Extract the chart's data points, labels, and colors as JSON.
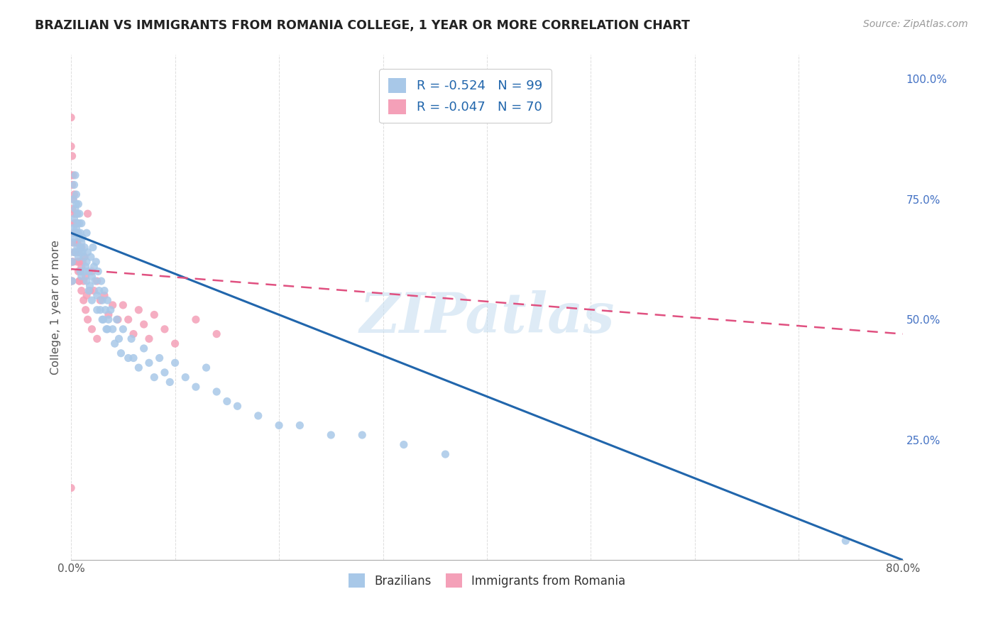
{
  "title": "BRAZILIAN VS IMMIGRANTS FROM ROMANIA COLLEGE, 1 YEAR OR MORE CORRELATION CHART",
  "source": "Source: ZipAtlas.com",
  "ylabel": "College, 1 year or more",
  "right_yticks": [
    "100.0%",
    "75.0%",
    "50.0%",
    "25.0%"
  ],
  "right_ytick_vals": [
    1.0,
    0.75,
    0.5,
    0.25
  ],
  "legend_blue_label": "R = -0.524   N = 99",
  "legend_pink_label": "R = -0.047   N = 70",
  "watermark": "ZIPatlas",
  "blue_color": "#a8c8e8",
  "pink_color": "#f4a0b8",
  "blue_line_color": "#2166ac",
  "pink_line_color": "#e05080",
  "blue_trendline": {
    "x": [
      0.0,
      0.8
    ],
    "y": [
      0.68,
      0.0
    ]
  },
  "pink_trendline": {
    "x": [
      0.0,
      0.8
    ],
    "y": [
      0.605,
      0.47
    ]
  },
  "xlim": [
    0.0,
    0.8
  ],
  "ylim": [
    0.0,
    1.05
  ],
  "xtick_positions": [
    0.0,
    0.1,
    0.2,
    0.3,
    0.4,
    0.5,
    0.6,
    0.7,
    0.8
  ],
  "xtick_labels": [
    "0.0%",
    "",
    "",
    "",
    "",
    "",
    "",
    "",
    "80.0%"
  ],
  "background_color": "#ffffff",
  "grid_color": "#dddddd",
  "right_axis_color": "#4472c4",
  "blue_scatter_x": [
    0.001,
    0.001,
    0.002,
    0.002,
    0.003,
    0.003,
    0.004,
    0.004,
    0.005,
    0.005,
    0.005,
    0.006,
    0.006,
    0.007,
    0.007,
    0.008,
    0.008,
    0.009,
    0.009,
    0.01,
    0.01,
    0.01,
    0.011,
    0.012,
    0.013,
    0.014,
    0.015,
    0.015,
    0.016,
    0.017,
    0.018,
    0.019,
    0.02,
    0.021,
    0.022,
    0.023,
    0.024,
    0.025,
    0.026,
    0.027,
    0.028,
    0.029,
    0.03,
    0.031,
    0.032,
    0.033,
    0.034,
    0.035,
    0.036,
    0.038,
    0.04,
    0.042,
    0.044,
    0.046,
    0.048,
    0.05,
    0.055,
    0.058,
    0.06,
    0.065,
    0.07,
    0.075,
    0.08,
    0.085,
    0.09,
    0.095,
    0.1,
    0.11,
    0.12,
    0.13,
    0.14,
    0.15,
    0.16,
    0.18,
    0.2,
    0.22,
    0.25,
    0.28,
    0.32,
    0.36,
    0.001,
    0.002,
    0.003,
    0.004,
    0.005,
    0.006,
    0.007,
    0.008,
    0.009,
    0.01,
    0.011,
    0.013,
    0.015,
    0.017,
    0.02,
    0.025,
    0.03,
    0.035,
    0.745
  ],
  "blue_scatter_y": [
    0.66,
    0.62,
    0.69,
    0.64,
    0.71,
    0.67,
    0.73,
    0.68,
    0.74,
    0.69,
    0.64,
    0.7,
    0.65,
    0.68,
    0.63,
    0.72,
    0.67,
    0.65,
    0.6,
    0.7,
    0.64,
    0.59,
    0.67,
    0.63,
    0.65,
    0.61,
    0.68,
    0.62,
    0.64,
    0.6,
    0.57,
    0.63,
    0.59,
    0.65,
    0.61,
    0.58,
    0.62,
    0.55,
    0.6,
    0.56,
    0.52,
    0.58,
    0.54,
    0.5,
    0.56,
    0.52,
    0.48,
    0.54,
    0.5,
    0.52,
    0.48,
    0.45,
    0.5,
    0.46,
    0.43,
    0.48,
    0.42,
    0.46,
    0.42,
    0.4,
    0.44,
    0.41,
    0.38,
    0.42,
    0.39,
    0.37,
    0.41,
    0.38,
    0.36,
    0.4,
    0.35,
    0.33,
    0.32,
    0.3,
    0.28,
    0.28,
    0.26,
    0.26,
    0.24,
    0.22,
    0.58,
    0.75,
    0.78,
    0.8,
    0.76,
    0.72,
    0.74,
    0.7,
    0.68,
    0.66,
    0.64,
    0.6,
    0.58,
    0.56,
    0.54,
    0.52,
    0.5,
    0.48,
    0.04
  ],
  "pink_scatter_x": [
    0.0,
    0.0,
    0.0,
    0.001,
    0.001,
    0.001,
    0.002,
    0.002,
    0.003,
    0.003,
    0.003,
    0.004,
    0.004,
    0.005,
    0.005,
    0.006,
    0.006,
    0.007,
    0.007,
    0.008,
    0.008,
    0.009,
    0.01,
    0.01,
    0.011,
    0.012,
    0.013,
    0.014,
    0.015,
    0.016,
    0.018,
    0.02,
    0.022,
    0.025,
    0.028,
    0.032,
    0.036,
    0.04,
    0.045,
    0.05,
    0.055,
    0.06,
    0.065,
    0.07,
    0.075,
    0.08,
    0.09,
    0.1,
    0.12,
    0.14,
    0.0,
    0.001,
    0.001,
    0.002,
    0.002,
    0.003,
    0.004,
    0.004,
    0.005,
    0.006,
    0.006,
    0.007,
    0.008,
    0.009,
    0.01,
    0.012,
    0.014,
    0.016,
    0.02,
    0.025
  ],
  "pink_scatter_y": [
    0.92,
    0.86,
    0.8,
    0.84,
    0.78,
    0.73,
    0.8,
    0.75,
    0.76,
    0.72,
    0.68,
    0.68,
    0.64,
    0.72,
    0.68,
    0.7,
    0.66,
    0.64,
    0.6,
    0.62,
    0.58,
    0.6,
    0.65,
    0.61,
    0.62,
    0.58,
    0.63,
    0.59,
    0.55,
    0.72,
    0.56,
    0.6,
    0.56,
    0.58,
    0.54,
    0.55,
    0.51,
    0.53,
    0.5,
    0.53,
    0.5,
    0.47,
    0.52,
    0.49,
    0.46,
    0.51,
    0.48,
    0.45,
    0.5,
    0.47,
    0.15,
    0.62,
    0.58,
    0.66,
    0.62,
    0.7,
    0.7,
    0.64,
    0.66,
    0.68,
    0.62,
    0.64,
    0.58,
    0.6,
    0.56,
    0.54,
    0.52,
    0.5,
    0.48,
    0.46
  ]
}
